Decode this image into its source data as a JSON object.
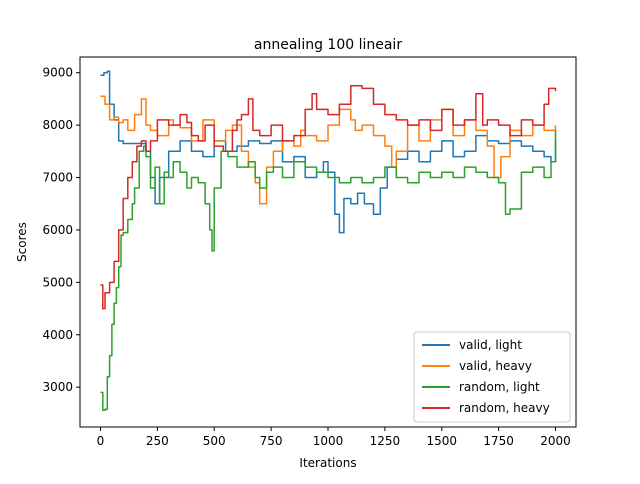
{
  "chart_data": {
    "type": "line",
    "title": "annealing 100 lineair",
    "xlabel": "Iterations",
    "ylabel": "Scores",
    "xlim": [
      -90,
      2090
    ],
    "ylim": [
      2240,
      9300
    ],
    "xticks": [
      0,
      250,
      500,
      750,
      1000,
      1250,
      1500,
      1750,
      2000
    ],
    "yticks": [
      3000,
      4000,
      5000,
      6000,
      7000,
      8000,
      9000
    ],
    "grid": false,
    "legend_position": "lower-right",
    "series": [
      {
        "name": "valid, light",
        "color": "#1f77b4",
        "points": [
          [
            0,
            8950
          ],
          [
            15,
            9000
          ],
          [
            30,
            9030
          ],
          [
            40,
            8400
          ],
          [
            60,
            8100
          ],
          [
            80,
            7700
          ],
          [
            100,
            7650
          ],
          [
            150,
            7650
          ],
          [
            200,
            7500
          ],
          [
            220,
            7000
          ],
          [
            240,
            6500
          ],
          [
            260,
            7000
          ],
          [
            300,
            7500
          ],
          [
            350,
            7700
          ],
          [
            400,
            7500
          ],
          [
            450,
            7400
          ],
          [
            500,
            7700
          ],
          [
            550,
            7500
          ],
          [
            600,
            7600
          ],
          [
            650,
            7700
          ],
          [
            700,
            7650
          ],
          [
            750,
            7700
          ],
          [
            800,
            7300
          ],
          [
            850,
            7400
          ],
          [
            900,
            7000
          ],
          [
            950,
            7100
          ],
          [
            980,
            7300
          ],
          [
            1000,
            7100
          ],
          [
            1030,
            6300
          ],
          [
            1050,
            5950
          ],
          [
            1070,
            6600
          ],
          [
            1100,
            6500
          ],
          [
            1130,
            6700
          ],
          [
            1160,
            6500
          ],
          [
            1200,
            6300
          ],
          [
            1230,
            6800
          ],
          [
            1260,
            7200
          ],
          [
            1300,
            7350
          ],
          [
            1350,
            7500
          ],
          [
            1400,
            7300
          ],
          [
            1450,
            7500
          ],
          [
            1500,
            7700
          ],
          [
            1550,
            7400
          ],
          [
            1600,
            7500
          ],
          [
            1650,
            7800
          ],
          [
            1700,
            7700
          ],
          [
            1750,
            7650
          ],
          [
            1800,
            7700
          ],
          [
            1850,
            7600
          ],
          [
            1900,
            7500
          ],
          [
            1950,
            7400
          ],
          [
            1980,
            7300
          ],
          [
            2000,
            7700
          ]
        ]
      },
      {
        "name": "valid, heavy",
        "color": "#ff7f0e",
        "points": [
          [
            0,
            8550
          ],
          [
            20,
            8400
          ],
          [
            40,
            8100
          ],
          [
            60,
            8150
          ],
          [
            80,
            8050
          ],
          [
            100,
            8100
          ],
          [
            120,
            7900
          ],
          [
            150,
            8200
          ],
          [
            180,
            8500
          ],
          [
            200,
            8000
          ],
          [
            220,
            7900
          ],
          [
            250,
            7800
          ],
          [
            300,
            8100
          ],
          [
            320,
            8000
          ],
          [
            350,
            7950
          ],
          [
            400,
            7700
          ],
          [
            450,
            8100
          ],
          [
            500,
            7700
          ],
          [
            550,
            7900
          ],
          [
            580,
            8000
          ],
          [
            620,
            7500
          ],
          [
            650,
            7200
          ],
          [
            680,
            6900
          ],
          [
            700,
            6500
          ],
          [
            730,
            7200
          ],
          [
            760,
            7500
          ],
          [
            800,
            7700
          ],
          [
            850,
            7600
          ],
          [
            880,
            7900
          ],
          [
            900,
            7800
          ],
          [
            950,
            7700
          ],
          [
            1000,
            8000
          ],
          [
            1050,
            8300
          ],
          [
            1100,
            8100
          ],
          [
            1120,
            7900
          ],
          [
            1150,
            8000
          ],
          [
            1200,
            7800
          ],
          [
            1250,
            7600
          ],
          [
            1280,
            7200
          ],
          [
            1300,
            7500
          ],
          [
            1350,
            8000
          ],
          [
            1400,
            7700
          ],
          [
            1450,
            8100
          ],
          [
            1500,
            8300
          ],
          [
            1550,
            7800
          ],
          [
            1600,
            8100
          ],
          [
            1650,
            7900
          ],
          [
            1700,
            7600
          ],
          [
            1730,
            7000
          ],
          [
            1760,
            7400
          ],
          [
            1800,
            7900
          ],
          [
            1850,
            7800
          ],
          [
            1900,
            8000
          ],
          [
            1950,
            7900
          ],
          [
            2000,
            8000
          ]
        ]
      },
      {
        "name": "random, light",
        "color": "#2ca02c",
        "points": [
          [
            0,
            2900
          ],
          [
            10,
            2560
          ],
          [
            20,
            2580
          ],
          [
            30,
            3200
          ],
          [
            40,
            3600
          ],
          [
            50,
            4200
          ],
          [
            60,
            4600
          ],
          [
            70,
            4900
          ],
          [
            80,
            5300
          ],
          [
            90,
            5900
          ],
          [
            100,
            5950
          ],
          [
            120,
            6200
          ],
          [
            140,
            6500
          ],
          [
            150,
            6800
          ],
          [
            170,
            7500
          ],
          [
            190,
            7600
          ],
          [
            200,
            7400
          ],
          [
            220,
            6800
          ],
          [
            240,
            7200
          ],
          [
            260,
            6500
          ],
          [
            280,
            7100
          ],
          [
            300,
            7000
          ],
          [
            320,
            7300
          ],
          [
            350,
            7100
          ],
          [
            380,
            6800
          ],
          [
            400,
            7000
          ],
          [
            430,
            6900
          ],
          [
            460,
            6500
          ],
          [
            480,
            6000
          ],
          [
            490,
            5600
          ],
          [
            500,
            6800
          ],
          [
            530,
            7500
          ],
          [
            560,
            7400
          ],
          [
            600,
            7200
          ],
          [
            650,
            7300
          ],
          [
            680,
            7000
          ],
          [
            700,
            6800
          ],
          [
            730,
            7100
          ],
          [
            760,
            7200
          ],
          [
            800,
            7000
          ],
          [
            850,
            7300
          ],
          [
            900,
            7200
          ],
          [
            950,
            7100
          ],
          [
            1000,
            7000
          ],
          [
            1050,
            6900
          ],
          [
            1100,
            7000
          ],
          [
            1150,
            6900
          ],
          [
            1200,
            7000
          ],
          [
            1250,
            7200
          ],
          [
            1300,
            7000
          ],
          [
            1350,
            6900
          ],
          [
            1400,
            7100
          ],
          [
            1450,
            7000
          ],
          [
            1500,
            7100
          ],
          [
            1550,
            7000
          ],
          [
            1600,
            7200
          ],
          [
            1650,
            7100
          ],
          [
            1700,
            7000
          ],
          [
            1750,
            6900
          ],
          [
            1780,
            6300
          ],
          [
            1800,
            6400
          ],
          [
            1850,
            7100
          ],
          [
            1900,
            7200
          ],
          [
            1950,
            7000
          ],
          [
            1980,
            7300
          ],
          [
            2000,
            7900
          ]
        ]
      },
      {
        "name": "random, heavy",
        "color": "#d62728",
        "points": [
          [
            0,
            4950
          ],
          [
            10,
            4500
          ],
          [
            20,
            4800
          ],
          [
            40,
            5000
          ],
          [
            60,
            5400
          ],
          [
            80,
            6000
          ],
          [
            100,
            6600
          ],
          [
            120,
            7000
          ],
          [
            140,
            7300
          ],
          [
            160,
            7600
          ],
          [
            180,
            7700
          ],
          [
            200,
            7500
          ],
          [
            220,
            7700
          ],
          [
            250,
            8100
          ],
          [
            300,
            8000
          ],
          [
            350,
            8200
          ],
          [
            380,
            8050
          ],
          [
            400,
            7800
          ],
          [
            430,
            7700
          ],
          [
            460,
            8000
          ],
          [
            500,
            7600
          ],
          [
            540,
            7500
          ],
          [
            580,
            7900
          ],
          [
            600,
            8100
          ],
          [
            620,
            8200
          ],
          [
            650,
            8500
          ],
          [
            670,
            7900
          ],
          [
            700,
            7800
          ],
          [
            750,
            8000
          ],
          [
            800,
            7700
          ],
          [
            850,
            7800
          ],
          [
            900,
            8300
          ],
          [
            930,
            8600
          ],
          [
            950,
            8300
          ],
          [
            1000,
            8200
          ],
          [
            1050,
            8400
          ],
          [
            1100,
            8750
          ],
          [
            1150,
            8700
          ],
          [
            1200,
            8400
          ],
          [
            1250,
            8200
          ],
          [
            1300,
            8100
          ],
          [
            1350,
            8000
          ],
          [
            1400,
            8100
          ],
          [
            1450,
            7900
          ],
          [
            1500,
            8300
          ],
          [
            1550,
            8000
          ],
          [
            1600,
            8100
          ],
          [
            1650,
            8600
          ],
          [
            1680,
            8000
          ],
          [
            1700,
            8100
          ],
          [
            1750,
            8000
          ],
          [
            1800,
            7800
          ],
          [
            1850,
            8100
          ],
          [
            1900,
            8000
          ],
          [
            1950,
            8400
          ],
          [
            1970,
            8700
          ],
          [
            2000,
            8650
          ]
        ]
      }
    ]
  }
}
